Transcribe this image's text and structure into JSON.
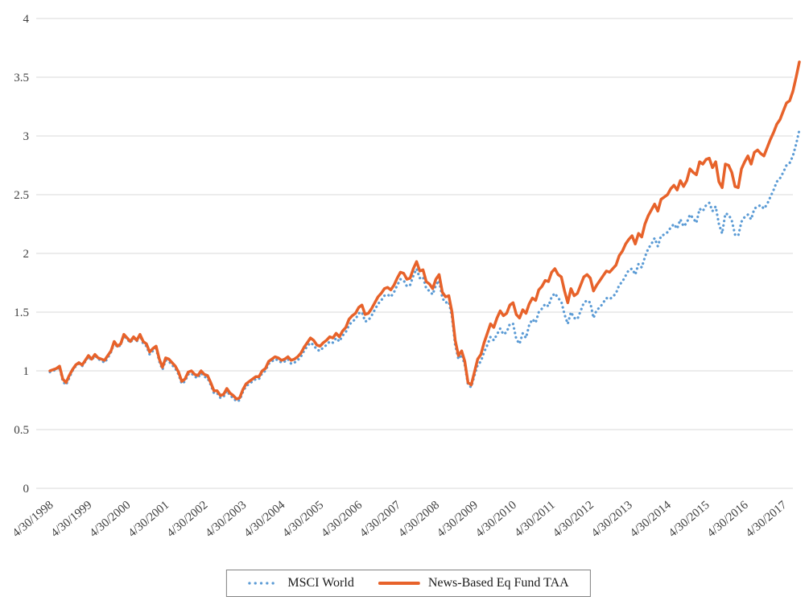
{
  "chart_data": {
    "type": "line",
    "title": "",
    "xlabel": "",
    "ylabel": "",
    "ylim": [
      0,
      4
    ],
    "grid": "horizontal-only",
    "grid_color": "#d9d9d9",
    "legend_position": "bottom-center",
    "x_start_label": "4/30/1998",
    "x_frequency": "monthly",
    "y_ticks": [
      "0",
      "0.5",
      "1",
      "1.5",
      "2",
      "2.5",
      "3",
      "3.5",
      "4"
    ],
    "x_tick_labels": [
      "4/30/1998",
      "4/30/1999",
      "4/30/2000",
      "4/30/2001",
      "4/30/2002",
      "4/30/2003",
      "4/30/2004",
      "4/30/2005",
      "4/30/2006",
      "4/30/2007",
      "4/30/2008",
      "4/30/2009",
      "4/30/2010",
      "4/30/2011",
      "4/30/2012",
      "4/30/2013",
      "4/30/2014",
      "4/30/2015",
      "4/30/2016",
      "4/30/2017"
    ],
    "series": [
      {
        "name": "MSCI World",
        "style": "dotted",
        "color": "#5b9bd5",
        "width": 3.2,
        "data_name": "msci-world-line",
        "values": [
          0.99,
          1.0,
          1.01,
          1.03,
          0.91,
          0.88,
          0.94,
          1.0,
          1.04,
          1.06,
          1.04,
          1.08,
          1.12,
          1.09,
          1.13,
          1.1,
          1.09,
          1.07,
          1.11,
          1.16,
          1.24,
          1.2,
          1.22,
          1.3,
          1.27,
          1.24,
          1.28,
          1.25,
          1.3,
          1.23,
          1.21,
          1.14,
          1.17,
          1.19,
          1.08,
          1.01,
          1.09,
          1.08,
          1.05,
          1.02,
          0.97,
          0.89,
          0.91,
          0.97,
          0.98,
          0.95,
          0.94,
          0.98,
          0.95,
          0.94,
          0.88,
          0.81,
          0.81,
          0.77,
          0.78,
          0.83,
          0.79,
          0.77,
          0.74,
          0.75,
          0.82,
          0.87,
          0.89,
          0.91,
          0.93,
          0.93,
          0.98,
          1.0,
          1.06,
          1.08,
          1.1,
          1.09,
          1.07,
          1.08,
          1.1,
          1.06,
          1.07,
          1.09,
          1.12,
          1.17,
          1.21,
          1.24,
          1.22,
          1.18,
          1.17,
          1.2,
          1.22,
          1.25,
          1.24,
          1.28,
          1.25,
          1.3,
          1.33,
          1.39,
          1.42,
          1.44,
          1.49,
          1.5,
          1.42,
          1.43,
          1.47,
          1.52,
          1.57,
          1.6,
          1.64,
          1.65,
          1.63,
          1.67,
          1.73,
          1.78,
          1.77,
          1.72,
          1.73,
          1.81,
          1.87,
          1.79,
          1.8,
          1.7,
          1.68,
          1.65,
          1.73,
          1.77,
          1.62,
          1.58,
          1.59,
          1.46,
          1.22,
          1.1,
          1.14,
          1.05,
          0.88,
          0.86,
          0.96,
          1.05,
          1.08,
          1.16,
          1.22,
          1.29,
          1.26,
          1.31,
          1.36,
          1.31,
          1.33,
          1.4,
          1.4,
          1.27,
          1.23,
          1.32,
          1.28,
          1.39,
          1.44,
          1.41,
          1.5,
          1.53,
          1.57,
          1.55,
          1.63,
          1.66,
          1.62,
          1.59,
          1.48,
          1.4,
          1.5,
          1.45,
          1.44,
          1.51,
          1.58,
          1.6,
          1.58,
          1.45,
          1.52,
          1.54,
          1.58,
          1.62,
          1.61,
          1.63,
          1.66,
          1.73,
          1.76,
          1.81,
          1.86,
          1.87,
          1.82,
          1.91,
          1.88,
          1.97,
          2.04,
          2.08,
          2.13,
          2.06,
          2.15,
          2.16,
          2.18,
          2.22,
          2.25,
          2.21,
          2.29,
          2.23,
          2.26,
          2.33,
          2.3,
          2.26,
          2.38,
          2.36,
          2.41,
          2.43,
          2.36,
          2.4,
          2.25,
          2.17,
          2.34,
          2.33,
          2.28,
          2.16,
          2.15,
          2.27,
          2.31,
          2.33,
          2.29,
          2.38,
          2.4,
          2.41,
          2.38,
          2.42,
          2.48,
          2.54,
          2.61,
          2.64,
          2.69,
          2.75,
          2.77,
          2.83,
          2.93,
          3.05
        ]
      },
      {
        "name": "News-Based Eq Fund TAA",
        "style": "solid",
        "color": "#e7622a",
        "width": 3.5,
        "data_name": "news-based-eq-fund-taa-line",
        "values": [
          1.0,
          1.01,
          1.02,
          1.04,
          0.93,
          0.9,
          0.96,
          1.01,
          1.05,
          1.07,
          1.05,
          1.09,
          1.13,
          1.1,
          1.14,
          1.11,
          1.1,
          1.09,
          1.13,
          1.17,
          1.25,
          1.21,
          1.23,
          1.31,
          1.28,
          1.25,
          1.29,
          1.26,
          1.31,
          1.25,
          1.23,
          1.16,
          1.19,
          1.21,
          1.1,
          1.03,
          1.11,
          1.1,
          1.07,
          1.04,
          0.99,
          0.91,
          0.93,
          0.99,
          1.0,
          0.97,
          0.96,
          1.0,
          0.97,
          0.96,
          0.9,
          0.83,
          0.83,
          0.79,
          0.8,
          0.85,
          0.81,
          0.79,
          0.76,
          0.77,
          0.84,
          0.89,
          0.91,
          0.93,
          0.95,
          0.95,
          1.0,
          1.02,
          1.08,
          1.1,
          1.12,
          1.11,
          1.09,
          1.1,
          1.12,
          1.09,
          1.1,
          1.12,
          1.15,
          1.2,
          1.24,
          1.28,
          1.26,
          1.22,
          1.21,
          1.24,
          1.26,
          1.29,
          1.28,
          1.32,
          1.29,
          1.34,
          1.37,
          1.44,
          1.47,
          1.49,
          1.54,
          1.56,
          1.48,
          1.49,
          1.53,
          1.58,
          1.63,
          1.66,
          1.7,
          1.71,
          1.69,
          1.73,
          1.79,
          1.84,
          1.83,
          1.78,
          1.79,
          1.87,
          1.93,
          1.85,
          1.86,
          1.76,
          1.74,
          1.7,
          1.78,
          1.82,
          1.67,
          1.63,
          1.64,
          1.5,
          1.26,
          1.13,
          1.17,
          1.08,
          0.9,
          0.88,
          0.99,
          1.1,
          1.14,
          1.24,
          1.32,
          1.4,
          1.37,
          1.45,
          1.51,
          1.47,
          1.49,
          1.56,
          1.58,
          1.48,
          1.45,
          1.52,
          1.49,
          1.57,
          1.62,
          1.6,
          1.69,
          1.72,
          1.77,
          1.76,
          1.84,
          1.87,
          1.82,
          1.8,
          1.68,
          1.58,
          1.7,
          1.64,
          1.66,
          1.73,
          1.8,
          1.82,
          1.79,
          1.68,
          1.73,
          1.77,
          1.81,
          1.85,
          1.84,
          1.87,
          1.9,
          1.98,
          2.02,
          2.08,
          2.12,
          2.15,
          2.08,
          2.17,
          2.14,
          2.25,
          2.32,
          2.37,
          2.42,
          2.36,
          2.46,
          2.48,
          2.5,
          2.55,
          2.58,
          2.54,
          2.62,
          2.57,
          2.62,
          2.72,
          2.69,
          2.67,
          2.78,
          2.76,
          2.8,
          2.81,
          2.73,
          2.78,
          2.61,
          2.56,
          2.76,
          2.75,
          2.69,
          2.57,
          2.56,
          2.72,
          2.78,
          2.83,
          2.76,
          2.86,
          2.88,
          2.85,
          2.83,
          2.9,
          2.97,
          3.03,
          3.1,
          3.14,
          3.21,
          3.28,
          3.3,
          3.38,
          3.5,
          3.63
        ]
      }
    ]
  },
  "legend": {
    "border_color": "#808080"
  }
}
